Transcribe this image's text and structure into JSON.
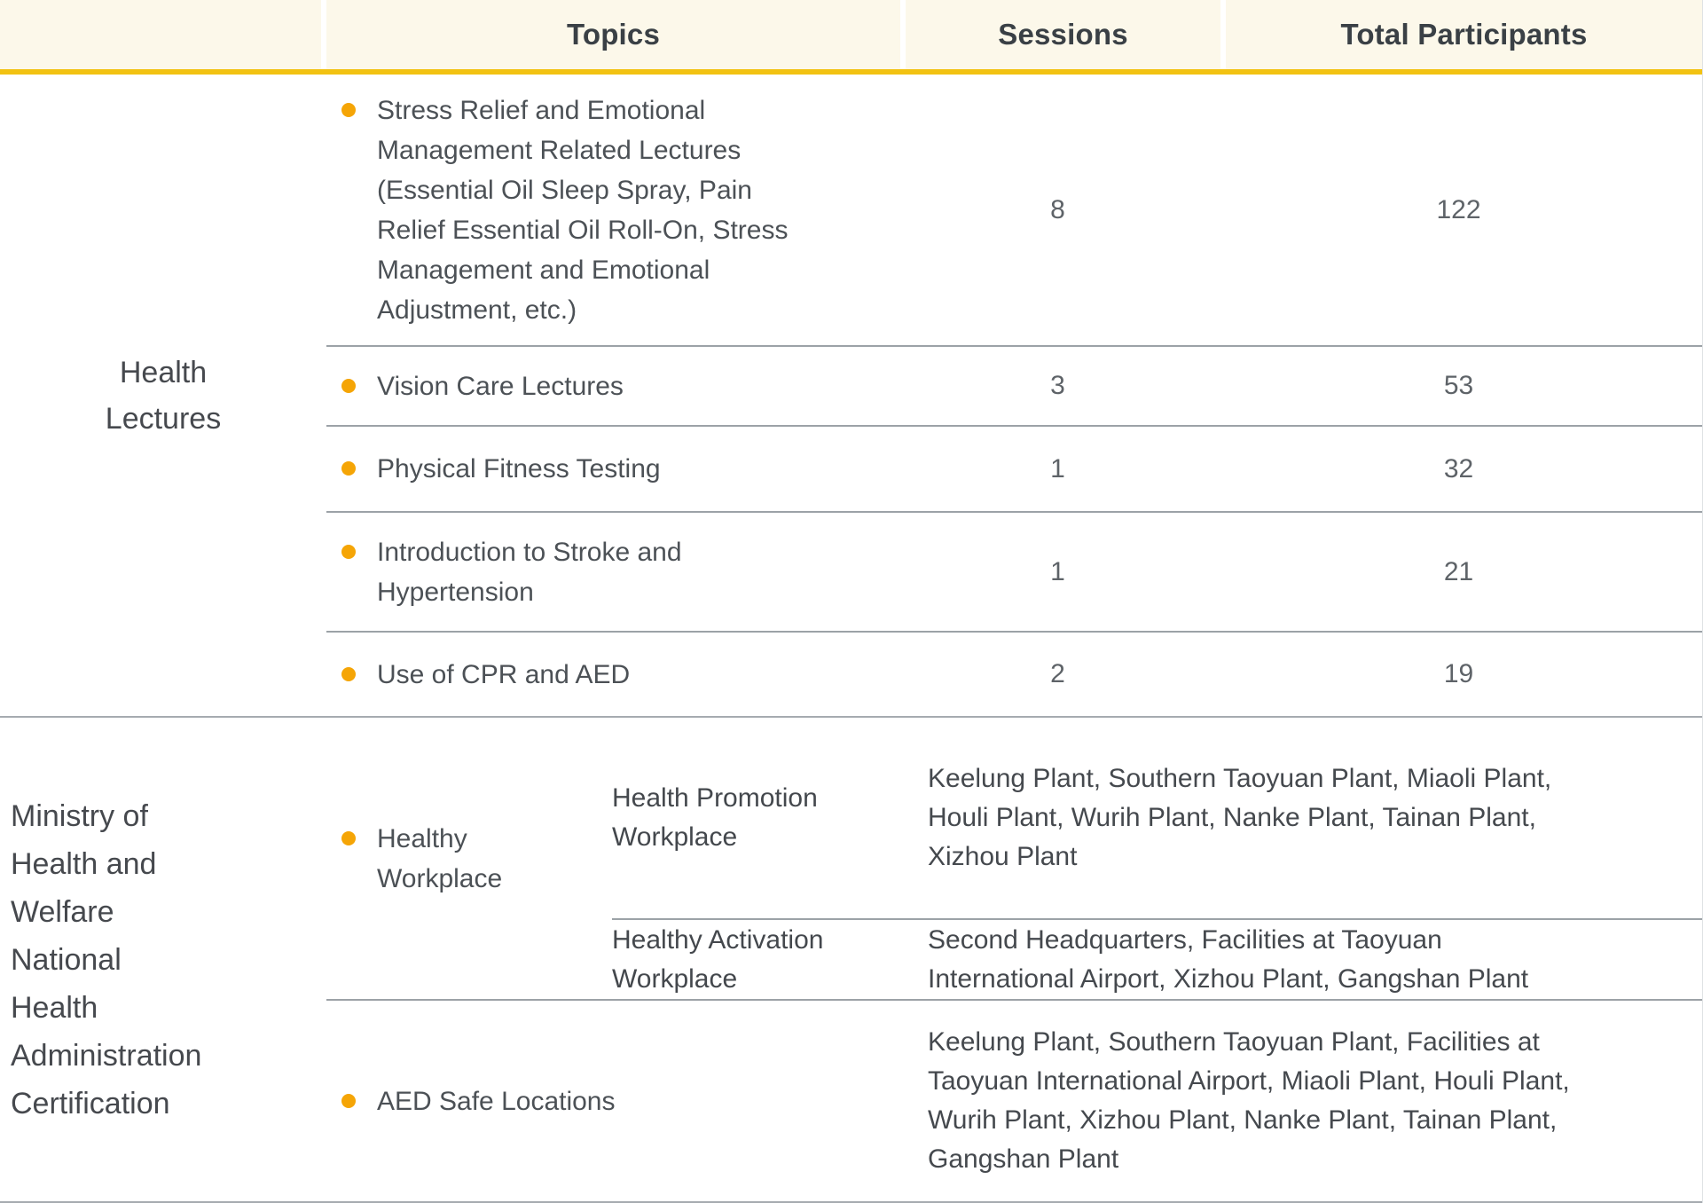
{
  "header": {
    "columns": [
      "",
      "Topics",
      "Sessions",
      "Total Participants"
    ]
  },
  "colors": {
    "header_background": "#FCF8EA",
    "gold_accent_line": "#F2C212",
    "bullet_orange": "#F5A506",
    "row_divider_gray": "#9CA2A7",
    "section_divider_gray": "#A6ABB0",
    "text_dark": "#3A4045",
    "text_body": "#4C5156"
  },
  "sections": [
    {
      "category": "Health\nLectures",
      "rows": [
        {
          "topic": "Stress Relief and Emotional\nManagement Related Lectures\n(Essential Oil Sleep Spray, Pain\nRelief Essential Oil Roll-On, Stress\nManagement and Emotional\nAdjustment, etc.)",
          "sessions": "8",
          "participants": "122"
        },
        {
          "topic": "Vision Care Lectures",
          "sessions": "3",
          "participants": "53"
        },
        {
          "topic": "Physical Fitness Testing",
          "sessions": "1",
          "participants": "32"
        },
        {
          "topic": "Introduction to Stroke and\nHypertension",
          "sessions": "1",
          "participants": "21"
        },
        {
          "topic": "Use of CPR and AED",
          "sessions": "2",
          "participants": "19"
        }
      ]
    },
    {
      "category": "Ministry of\nHealth and\nWelfare\nNational\nHealth\nAdministration\nCertification",
      "healthy_workplace": {
        "topic": "Healthy\nWorkplace",
        "subrows": [
          {
            "subtopic": "Health Promotion\nWorkplace",
            "locations": "Keelung Plant, Southern Taoyuan Plant, Miaoli Plant,\nHouli Plant, Wurih Plant, Nanke Plant, Tainan Plant,\nXizhou Plant"
          },
          {
            "subtopic": "Healthy Activation\nWorkplace",
            "locations": "Second Headquarters, Facilities at Taoyuan\nInternational Airport, Xizhou Plant, Gangshan Plant"
          }
        ]
      },
      "aed": {
        "topic": "AED Safe Locations",
        "locations": "Keelung Plant, Southern Taoyuan Plant, Facilities at\nTaoyuan International Airport, Miaoli Plant, Houli Plant,\nWurih Plant, Xizhou Plant, Nanke Plant, Tainan Plant,\nGangshan Plant"
      }
    }
  ]
}
